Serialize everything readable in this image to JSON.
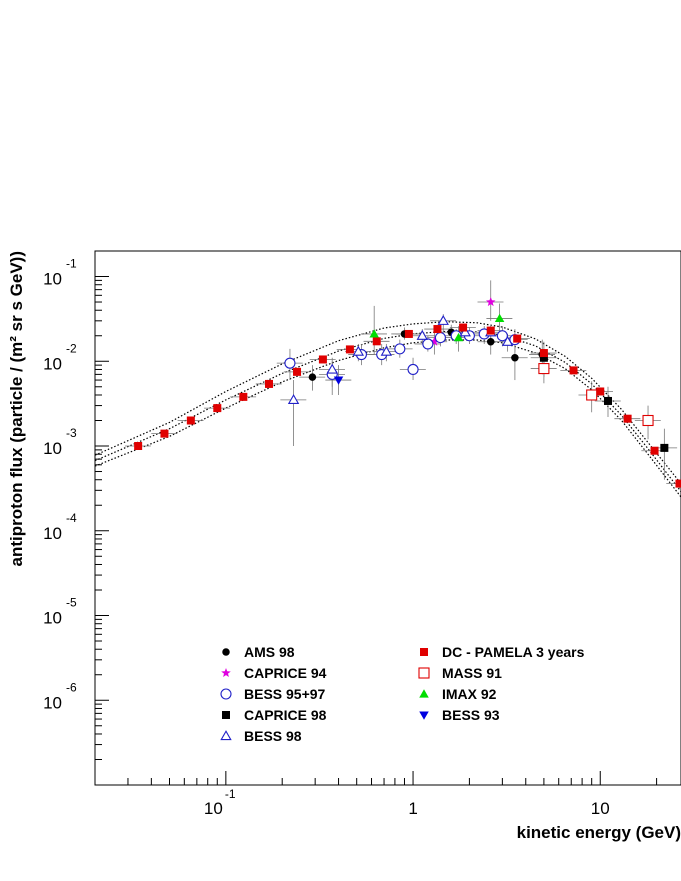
{
  "chart_data": {
    "type": "scatter",
    "title": "",
    "xlabel": "kinetic energy (GeV)",
    "ylabel": "antiproton flux (particle / (m² sr s GeV))",
    "xscale": "log",
    "yscale": "log",
    "xlim": [
      0.02,
      27
    ],
    "ylim": [
      1e-07,
      0.2
    ],
    "grid": false,
    "legend_position": "bottom-center",
    "x_tick_labels": [
      {
        "value": 0.1,
        "base": "10",
        "exp": "-1"
      },
      {
        "value": 1,
        "base": "1",
        "exp": ""
      },
      {
        "value": 10,
        "base": "10",
        "exp": ""
      }
    ],
    "y_tick_labels": [
      {
        "value": 0.1,
        "base": "10",
        "exp": "-1"
      },
      {
        "value": 0.01,
        "base": "10",
        "exp": "-2"
      },
      {
        "value": 0.001,
        "base": "10",
        "exp": "-3"
      },
      {
        "value": 0.0001,
        "base": "10",
        "exp": "-4"
      },
      {
        "value": 1e-05,
        "base": "10",
        "exp": "-5"
      },
      {
        "value": 1e-06,
        "base": "10",
        "exp": "-6"
      }
    ],
    "series": [
      {
        "name": "AMS 98",
        "marker": "circle-filled",
        "color": "#000000",
        "points": [
          [
            0.29,
            0.0065,
            0.0045,
            0.009
          ],
          [
            0.9,
            0.021,
            0.018,
            0.025
          ],
          [
            1.6,
            0.022,
            0.018,
            0.027
          ],
          [
            2.6,
            0.017,
            0.012,
            0.024
          ],
          [
            3.5,
            0.011,
            0.006,
            0.016
          ],
          [
            4.9,
            0.012,
            0.007,
            0.018
          ]
        ]
      },
      {
        "name": "CAPRICE 94",
        "marker": "star",
        "color": "#e000e0",
        "points": [
          [
            1.3,
            0.017,
            0.012,
            0.022
          ],
          [
            2.6,
            0.05,
            0.03,
            0.09
          ]
        ]
      },
      {
        "name": "BESS 95+97",
        "marker": "circle-open",
        "color": "#2020c8",
        "points": [
          [
            0.22,
            0.0095,
            0.006,
            0.014
          ],
          [
            0.37,
            0.007,
            0.004,
            0.01
          ],
          [
            0.53,
            0.012,
            0.009,
            0.016
          ],
          [
            0.68,
            0.012,
            0.009,
            0.016
          ],
          [
            0.85,
            0.014,
            0.011,
            0.018
          ],
          [
            1.0,
            0.008,
            0.006,
            0.011
          ],
          [
            1.2,
            0.016,
            0.013,
            0.02
          ],
          [
            1.4,
            0.019,
            0.015,
            0.023
          ],
          [
            1.7,
            0.02,
            0.016,
            0.024
          ],
          [
            2.0,
            0.02,
            0.016,
            0.025
          ],
          [
            2.4,
            0.021,
            0.016,
            0.026
          ],
          [
            3.0,
            0.02,
            0.015,
            0.026
          ],
          [
            3.5,
            0.018,
            0.013,
            0.024
          ]
        ]
      },
      {
        "name": "CAPRICE 98",
        "marker": "square-filled",
        "color": "#000000",
        "points": [
          [
            5.0,
            0.011,
            0.0065,
            0.017
          ],
          [
            11.0,
            0.0034,
            0.0022,
            0.005
          ],
          [
            22.0,
            0.00095,
            0.0004,
            0.0016
          ]
        ]
      },
      {
        "name": "BESS 98",
        "marker": "triangle-open",
        "color": "#2020c8",
        "points": [
          [
            0.23,
            0.0035,
            0.001,
            0.006
          ],
          [
            0.37,
            0.008,
            0.005,
            0.011
          ],
          [
            0.51,
            0.013,
            0.01,
            0.016
          ],
          [
            0.72,
            0.013,
            0.01,
            0.016
          ],
          [
            1.12,
            0.02,
            0.016,
            0.024
          ],
          [
            1.45,
            0.03,
            0.022,
            0.036
          ],
          [
            1.9,
            0.022,
            0.018,
            0.027
          ],
          [
            2.6,
            0.022,
            0.018,
            0.027
          ],
          [
            3.2,
            0.017,
            0.013,
            0.021
          ]
        ]
      },
      {
        "name": "DC - PAMELA 3 years",
        "marker": "square-filled",
        "color": "#e00000",
        "points": [
          [
            0.034,
            0.001,
            0.0009,
            0.0011
          ],
          [
            0.047,
            0.0014,
            0.00127,
            0.00153
          ],
          [
            0.065,
            0.002,
            0.00182,
            0.0022
          ],
          [
            0.09,
            0.0028,
            0.00255,
            0.0031
          ],
          [
            0.124,
            0.0038,
            0.0035,
            0.0042
          ],
          [
            0.17,
            0.0054,
            0.005,
            0.0059
          ],
          [
            0.24,
            0.0075,
            0.007,
            0.0081
          ],
          [
            0.33,
            0.0105,
            0.0098,
            0.0113
          ],
          [
            0.46,
            0.0138,
            0.0129,
            0.0148
          ],
          [
            0.64,
            0.0172,
            0.0162,
            0.0183
          ],
          [
            0.95,
            0.021,
            0.0198,
            0.0224
          ],
          [
            1.35,
            0.024,
            0.0226,
            0.0255
          ],
          [
            1.85,
            0.025,
            0.0235,
            0.0266
          ],
          [
            2.6,
            0.023,
            0.0216,
            0.0245
          ],
          [
            3.6,
            0.0185,
            0.0173,
            0.0198
          ],
          [
            5.0,
            0.0125,
            0.0116,
            0.0135
          ],
          [
            7.2,
            0.0078,
            0.0072,
            0.0085
          ],
          [
            10.0,
            0.0044,
            0.004,
            0.0048
          ],
          [
            14.0,
            0.0021,
            0.0019,
            0.0023
          ],
          [
            19.5,
            0.00088,
            0.0008,
            0.00096
          ],
          [
            26.5,
            0.00036,
            0.00031,
            0.0004
          ]
        ]
      },
      {
        "name": "MASS 91",
        "marker": "square-open",
        "color": "#e00000",
        "points": [
          [
            5.0,
            0.0082,
            0.0055,
            0.012
          ],
          [
            9.0,
            0.004,
            0.0025,
            0.0058
          ],
          [
            18.0,
            0.002,
            0.0012,
            0.003
          ]
        ]
      },
      {
        "name": "IMAX 92",
        "marker": "triangle-filled",
        "color": "#00dd00",
        "points": [
          [
            0.62,
            0.021,
            0.012,
            0.045
          ],
          [
            1.75,
            0.019,
            0.013,
            0.026
          ],
          [
            2.9,
            0.032,
            0.02,
            0.048
          ]
        ]
      },
      {
        "name": "BESS 93",
        "marker": "triangle-down-filled",
        "color": "#0000e0",
        "points": [
          [
            0.4,
            0.006,
            0.004,
            0.009
          ]
        ]
      }
    ],
    "model_curves": [
      {
        "style": "dotted",
        "points": [
          [
            0.02,
            0.00078
          ],
          [
            0.05,
            0.0019
          ],
          [
            0.1,
            0.0044
          ],
          [
            0.2,
            0.0093
          ],
          [
            0.4,
            0.0175
          ],
          [
            0.7,
            0.0247
          ],
          [
            1.0,
            0.0276
          ],
          [
            1.5,
            0.0293
          ],
          [
            2.2,
            0.0284
          ],
          [
            3.0,
            0.0253
          ],
          [
            4.5,
            0.0184
          ],
          [
            6.5,
            0.0114
          ],
          [
            9.0,
            0.0063
          ],
          [
            13.0,
            0.0027
          ],
          [
            18.0,
            0.0011
          ],
          [
            27.0,
            0.00036
          ]
        ]
      },
      {
        "style": "dotted",
        "points": [
          [
            0.02,
            0.00067
          ],
          [
            0.05,
            0.0016
          ],
          [
            0.1,
            0.0035
          ],
          [
            0.2,
            0.0072
          ],
          [
            0.4,
            0.0132
          ],
          [
            0.7,
            0.0186
          ],
          [
            1.0,
            0.0211
          ],
          [
            1.5,
            0.0225
          ],
          [
            2.2,
            0.0222
          ],
          [
            3.0,
            0.0203
          ],
          [
            4.5,
            0.0152
          ],
          [
            6.5,
            0.0097
          ],
          [
            9.0,
            0.0054
          ],
          [
            13.0,
            0.0023
          ],
          [
            18.0,
            0.00093
          ],
          [
            27.0,
            0.00029
          ]
        ]
      },
      {
        "style": "dotted",
        "points": [
          [
            0.02,
            0.00058
          ],
          [
            0.05,
            0.0013
          ],
          [
            0.1,
            0.0028
          ],
          [
            0.2,
            0.0057
          ],
          [
            0.4,
            0.0102
          ],
          [
            0.7,
            0.0144
          ],
          [
            1.0,
            0.0165
          ],
          [
            1.5,
            0.0178
          ],
          [
            2.2,
            0.0178
          ],
          [
            3.0,
            0.0165
          ],
          [
            4.5,
            0.0126
          ],
          [
            6.5,
            0.0082
          ],
          [
            9.0,
            0.0046
          ],
          [
            13.0,
            0.002
          ],
          [
            18.0,
            0.0008
          ],
          [
            27.0,
            0.00025
          ]
        ]
      }
    ]
  }
}
